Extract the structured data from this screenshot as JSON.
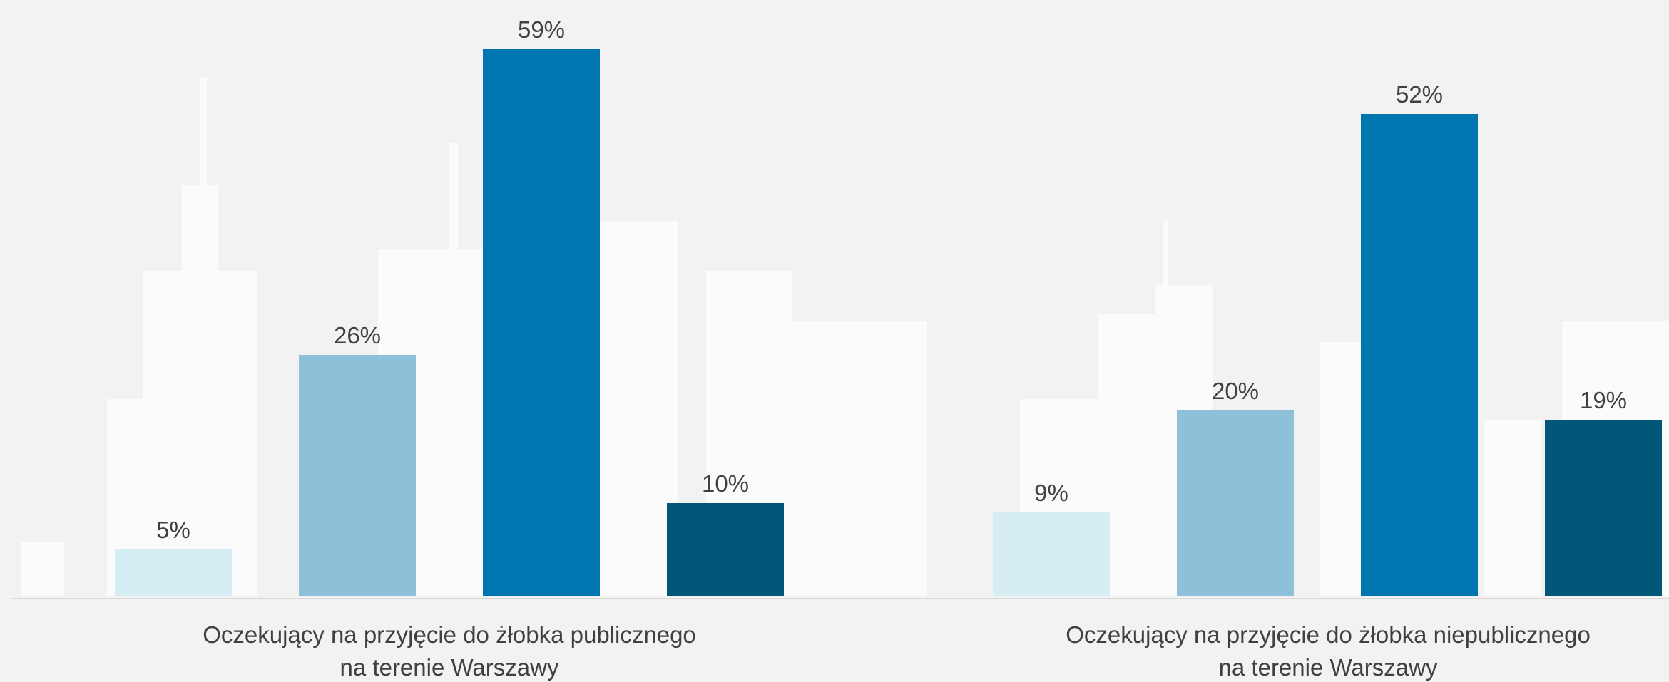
{
  "chart_data": [
    {
      "type": "bar",
      "x_label": [
        "Oczekujący na przyjęcie do żłobka publicznego",
        "na terenie Warszawy"
      ],
      "values": [
        5,
        26,
        59,
        10
      ],
      "value_labels": [
        "5%",
        "26%",
        "59%",
        "10%"
      ],
      "colors": [
        "#d5eef3",
        "#8ec1d9",
        "#0076b0",
        "#00577a"
      ]
    },
    {
      "type": "bar",
      "x_label": [
        "Oczekujący na przyjęcie do żłobka niepublicznego",
        "na terenie Warszawy"
      ],
      "values": [
        9,
        20,
        52,
        19
      ],
      "value_labels": [
        "9%",
        "20%",
        "52%",
        "19%"
      ],
      "colors": [
        "#d5eef3",
        "#8ec1d9",
        "#0076b0",
        "#00577a"
      ]
    }
  ]
}
